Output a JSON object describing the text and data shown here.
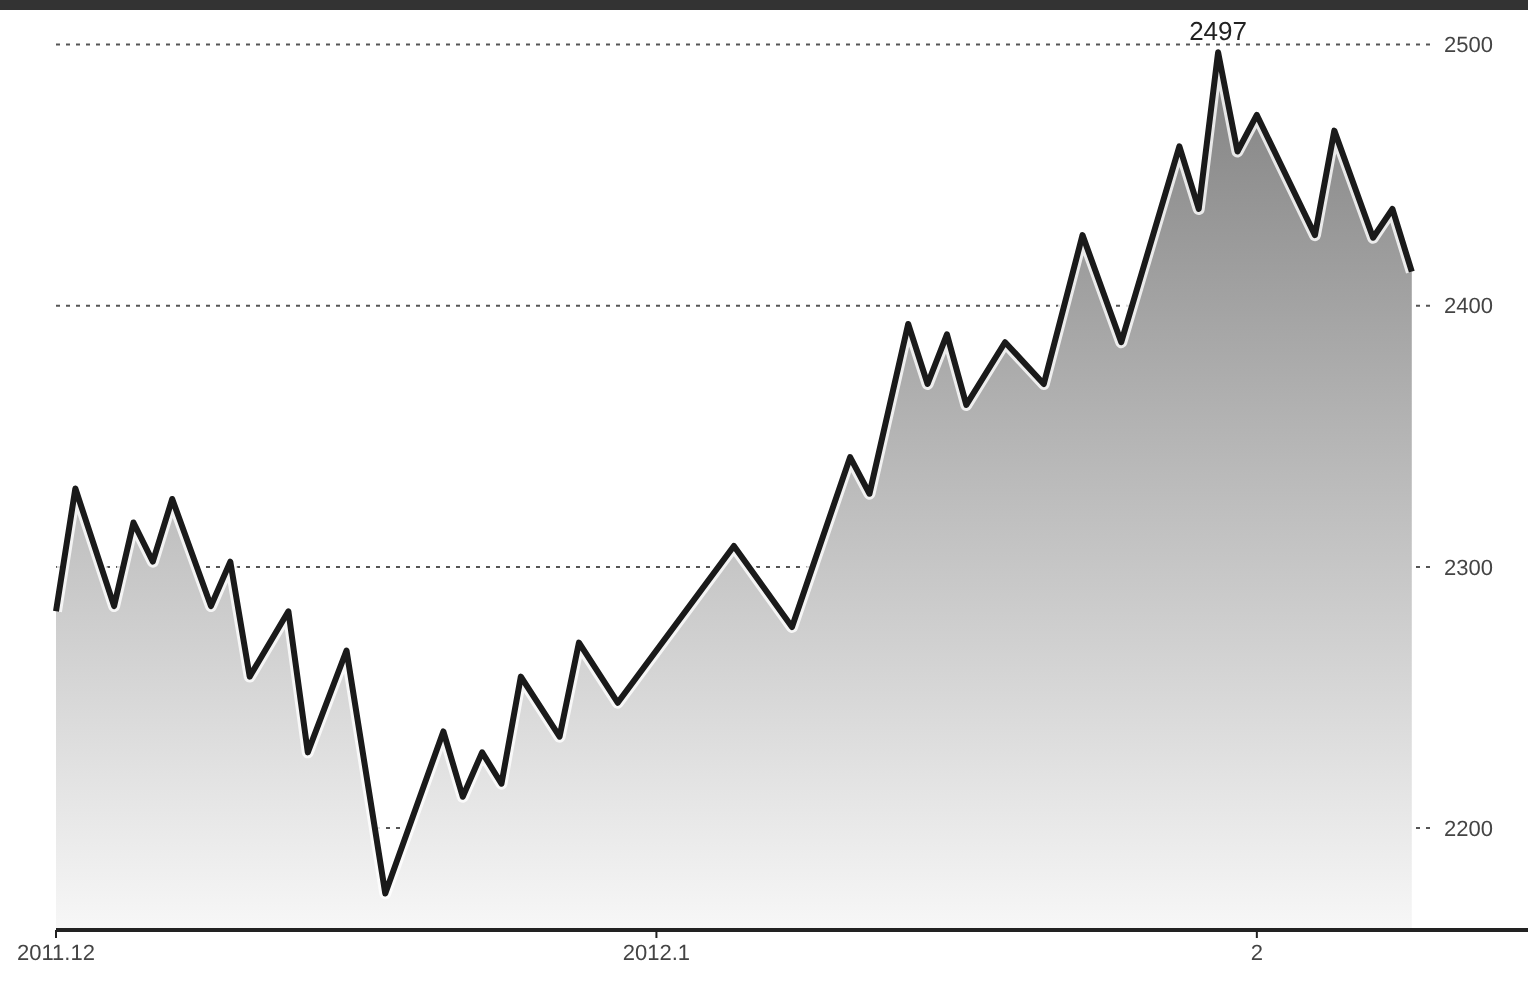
{
  "chart_data": {
    "type": "area",
    "annotations": [
      {
        "text": "2497",
        "x": "2012-01-30",
        "y": 2497
      }
    ],
    "x": [
      "2011-12-01",
      "2011-12-02",
      "2011-12-04",
      "2011-12-05",
      "2011-12-06",
      "2011-12-07",
      "2011-12-09",
      "2011-12-10",
      "2011-12-11",
      "2011-12-13",
      "2011-12-14",
      "2011-12-16",
      "2011-12-18",
      "2011-12-21",
      "2011-12-22",
      "2011-12-23",
      "2011-12-24",
      "2011-12-25",
      "2011-12-27",
      "2011-12-28",
      "2011-12-30",
      "2012-01-05",
      "2012-01-08",
      "2012-01-11",
      "2012-01-12",
      "2012-01-14",
      "2012-01-15",
      "2012-01-16",
      "2012-01-17",
      "2012-01-19",
      "2012-01-21",
      "2012-01-23",
      "2012-01-25",
      "2012-01-28",
      "2012-01-29",
      "2012-01-30",
      "2012-01-31",
      "2012-02-01",
      "2012-02-04",
      "2012-02-05",
      "2012-02-07",
      "2012-02-08",
      "2012-02-09"
    ],
    "series": [
      {
        "color": "#1a1a1a",
        "values": [
          2283,
          2330,
          2285,
          2317,
          2302,
          2326,
          2285,
          2302,
          2258,
          2283,
          2229,
          2268,
          2175,
          2237,
          2212,
          2229,
          2217,
          2258,
          2235,
          2271,
          2248,
          2308,
          2277,
          2342,
          2328,
          2393,
          2370,
          2389,
          2362,
          2386,
          2370,
          2427,
          2386,
          2461,
          2437,
          2497,
          2459,
          2473,
          2427,
          2467,
          2426,
          2437,
          2413
        ]
      }
    ],
    "xlim": [
      "2011-12-01",
      "2012-02-15"
    ],
    "xticks": [
      {
        "value": "2011-12-01",
        "label": "2011.12"
      },
      {
        "value": "2012-01-01",
        "label": "2012.1"
      },
      {
        "value": "2012-02-01",
        "label": "2"
      }
    ],
    "ylim": [
      2161,
      2517
    ],
    "yticks": [
      2200,
      2300,
      2400,
      2500
    ],
    "grid": "y",
    "line_style": "solid"
  }
}
